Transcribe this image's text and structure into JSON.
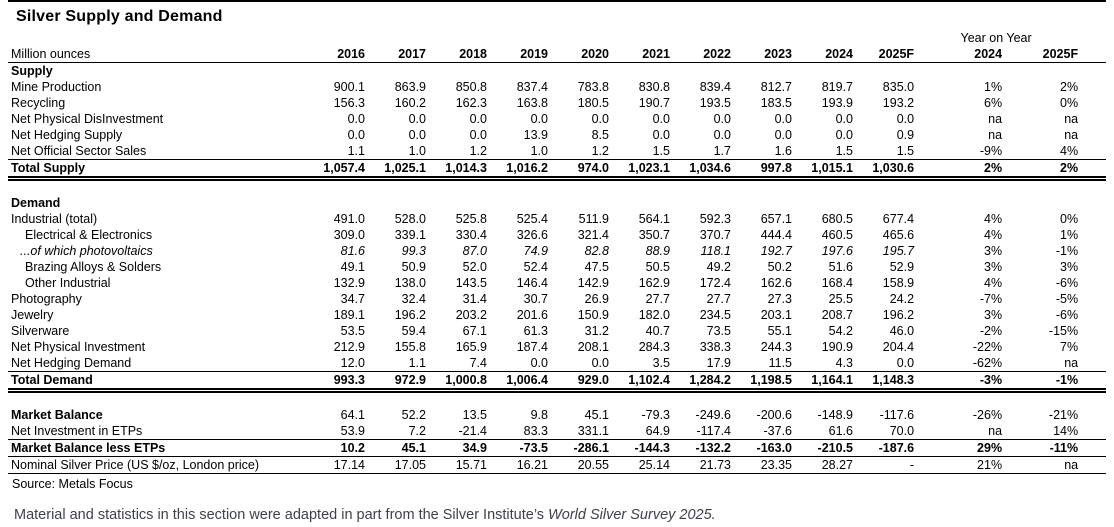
{
  "title": "Silver Supply and Demand",
  "table": {
    "unit_label": "Million ounces",
    "yoy_header": "Year on Year",
    "year_columns": [
      "2016",
      "2017",
      "2018",
      "2019",
      "2020",
      "2021",
      "2022",
      "2023",
      "2024",
      "2025F"
    ],
    "yoy_columns": [
      "2024",
      "2025F"
    ],
    "rows": [
      {
        "label": "Supply",
        "type": "section",
        "values": []
      },
      {
        "label": "Mine Production",
        "values": [
          "900.1",
          "863.9",
          "850.8",
          "837.4",
          "783.8",
          "830.8",
          "839.4",
          "812.7",
          "819.7",
          "835.0",
          "1%",
          "2%"
        ]
      },
      {
        "label": "Recycling",
        "values": [
          "156.3",
          "160.2",
          "162.3",
          "163.8",
          "180.5",
          "190.7",
          "193.5",
          "183.5",
          "193.9",
          "193.2",
          "6%",
          "0%"
        ]
      },
      {
        "label": "Net Physical DisInvestment",
        "values": [
          "0.0",
          "0.0",
          "0.0",
          "0.0",
          "0.0",
          "0.0",
          "0.0",
          "0.0",
          "0.0",
          "0.0",
          "na",
          "na"
        ]
      },
      {
        "label": "Net Hedging Supply",
        "values": [
          "0.0",
          "0.0",
          "0.0",
          "13.9",
          "8.5",
          "0.0",
          "0.0",
          "0.0",
          "0.0",
          "0.9",
          "na",
          "na"
        ]
      },
      {
        "label": "Net Official Sector Sales",
        "rule": "single",
        "values": [
          "1.1",
          "1.0",
          "1.2",
          "1.0",
          "1.2",
          "1.5",
          "1.7",
          "1.6",
          "1.5",
          "1.5",
          "-9%",
          "4%"
        ]
      },
      {
        "label": "Total Supply",
        "type": "total",
        "rule": "double",
        "values": [
          "1,057.4",
          "1,025.1",
          "1,014.3",
          "1,016.2",
          "974.0",
          "1,023.1",
          "1,034.6",
          "997.8",
          "1,015.1",
          "1,030.6",
          "2%",
          "2%"
        ]
      },
      {
        "type": "spacer"
      },
      {
        "label": "Demand",
        "type": "section",
        "values": []
      },
      {
        "label": "Industrial (total)",
        "values": [
          "491.0",
          "528.0",
          "525.8",
          "525.4",
          "511.9",
          "564.1",
          "592.3",
          "657.1",
          "680.5",
          "677.4",
          "4%",
          "0%"
        ]
      },
      {
        "label": "Electrical & Electronics",
        "indent": 1,
        "values": [
          "309.0",
          "339.1",
          "330.4",
          "326.6",
          "321.4",
          "350.7",
          "370.7",
          "444.4",
          "460.5",
          "465.6",
          "4%",
          "1%"
        ]
      },
      {
        "label": "...of which photovoltaics",
        "indent": 2,
        "italic": true,
        "values": [
          "81.6",
          "99.3",
          "87.0",
          "74.9",
          "82.8",
          "88.9",
          "118.1",
          "192.7",
          "197.6",
          "195.7",
          "3%",
          "-1%"
        ]
      },
      {
        "label": "Brazing Alloys & Solders",
        "indent": 1,
        "values": [
          "49.1",
          "50.9",
          "52.0",
          "52.4",
          "47.5",
          "50.5",
          "49.2",
          "50.2",
          "51.6",
          "52.9",
          "3%",
          "3%"
        ]
      },
      {
        "label": "Other Industrial",
        "indent": 1,
        "values": [
          "132.9",
          "138.0",
          "143.5",
          "146.4",
          "142.9",
          "162.9",
          "172.4",
          "162.6",
          "168.4",
          "158.9",
          "4%",
          "-6%"
        ]
      },
      {
        "label": "Photography",
        "values": [
          "34.7",
          "32.4",
          "31.4",
          "30.7",
          "26.9",
          "27.7",
          "27.7",
          "27.3",
          "25.5",
          "24.2",
          "-7%",
          "-5%"
        ]
      },
      {
        "label": "Jewelry",
        "values": [
          "189.1",
          "196.2",
          "203.2",
          "201.6",
          "150.9",
          "182.0",
          "234.5",
          "203.1",
          "208.7",
          "196.2",
          "3%",
          "-6%"
        ]
      },
      {
        "label": "Silverware",
        "values": [
          "53.5",
          "59.4",
          "67.1",
          "61.3",
          "31.2",
          "40.7",
          "73.5",
          "55.1",
          "54.2",
          "46.0",
          "-2%",
          "-15%"
        ]
      },
      {
        "label": "Net Physical Investment",
        "values": [
          "212.9",
          "155.8",
          "165.9",
          "187.4",
          "208.1",
          "284.3",
          "338.3",
          "244.3",
          "190.9",
          "204.4",
          "-22%",
          "7%"
        ]
      },
      {
        "label": "Net Hedging Demand",
        "rule": "single",
        "values": [
          "12.0",
          "1.1",
          "7.4",
          "0.0",
          "0.0",
          "3.5",
          "17.9",
          "11.5",
          "4.3",
          "0.0",
          "-62%",
          "na"
        ]
      },
      {
        "label": "Total Demand",
        "type": "total",
        "rule": "double",
        "values": [
          "993.3",
          "972.9",
          "1,000.8",
          "1,006.4",
          "929.0",
          "1,102.4",
          "1,284.2",
          "1,198.5",
          "1,164.1",
          "1,148.3",
          "-3%",
          "-1%"
        ]
      },
      {
        "type": "spacer"
      },
      {
        "label": "Market Balance",
        "type": "bold-label",
        "values": [
          "64.1",
          "52.2",
          "13.5",
          "9.8",
          "45.1",
          "-79.3",
          "-249.6",
          "-200.6",
          "-148.9",
          "-117.6",
          "-26%",
          "-21%"
        ]
      },
      {
        "label": "Net Investment in ETPs",
        "rule": "single",
        "values": [
          "53.9",
          "7.2",
          "-21.4",
          "83.3",
          "331.1",
          "64.9",
          "-117.4",
          "-37.6",
          "61.6",
          "70.0",
          "na",
          "14%"
        ]
      },
      {
        "label": "Market Balance less ETPs",
        "type": "total",
        "rule": "single",
        "values": [
          "10.2",
          "45.1",
          "34.9",
          "-73.5",
          "-286.1",
          "-144.3",
          "-132.2",
          "-163.0",
          "-210.5",
          "-187.6",
          "29%",
          "-11%"
        ]
      },
      {
        "label": "Nominal Silver Price (US $/oz, London price)",
        "rule": "single",
        "values": [
          "17.14",
          "17.05",
          "15.71",
          "16.21",
          "20.55",
          "25.14",
          "21.73",
          "23.35",
          "28.27",
          "-",
          "21%",
          "na"
        ]
      }
    ]
  },
  "source": "Source: Metals Focus",
  "footer": {
    "text": "Material and statistics in this section were adapted in part from the Silver Institute’s ",
    "italic_text": "World Silver Survey 2025."
  },
  "colors": {
    "text": "#000000",
    "footer_text": "#3e4247",
    "background": "#ffffff",
    "rule": "#000000"
  }
}
